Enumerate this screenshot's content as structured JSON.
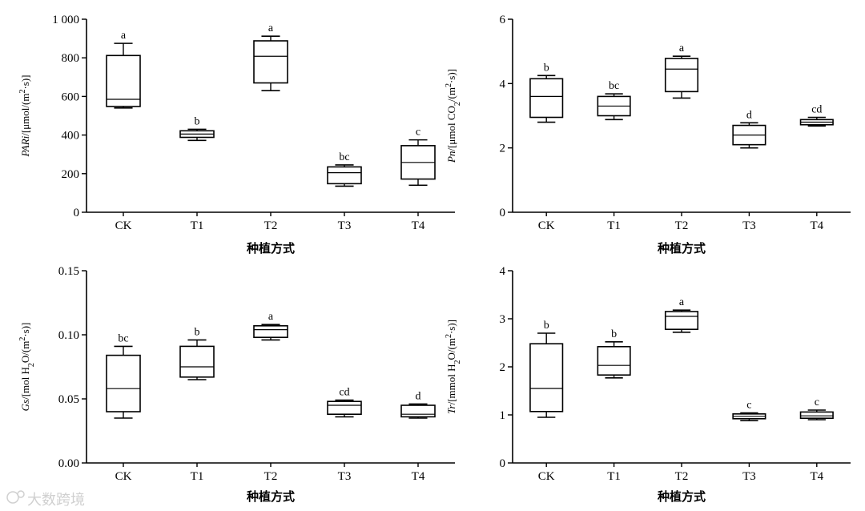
{
  "watermark": "大数跨境",
  "colors": {
    "ink": "#000000",
    "watermark": "#d0d0d0"
  },
  "chart_data": [
    {
      "type": "box",
      "panel": "top-left",
      "categories": [
        "CK",
        "T1",
        "T2",
        "T3",
        "T4"
      ],
      "xlabel": "种植方式",
      "ylabel_parts": [
        "PARi",
        "/[μmol/(m",
        "2",
        "·s)]"
      ],
      "ylim": [
        0,
        1000
      ],
      "yticks": [
        0,
        200,
        400,
        600,
        800,
        1000
      ],
      "ytick_labels": [
        "0",
        "200",
        "400",
        "600",
        "800",
        "1 000"
      ],
      "grid": false,
      "boxes": [
        {
          "min": 540,
          "q1": 548,
          "median": 585,
          "q3": 812,
          "max": 875,
          "letter": "a"
        },
        {
          "min": 372,
          "q1": 388,
          "median": 405,
          "q3": 422,
          "max": 430,
          "letter": "b"
        },
        {
          "min": 630,
          "q1": 670,
          "median": 808,
          "q3": 888,
          "max": 912,
          "letter": "a"
        },
        {
          "min": 135,
          "q1": 148,
          "median": 205,
          "q3": 235,
          "max": 245,
          "letter": "bc"
        },
        {
          "min": 140,
          "q1": 172,
          "median": 258,
          "q3": 345,
          "max": 375,
          "letter": "c"
        }
      ]
    },
    {
      "type": "box",
      "panel": "top-right",
      "categories": [
        "CK",
        "T1",
        "T2",
        "T3",
        "T4"
      ],
      "xlabel": "种植方式",
      "ylabel_parts": [
        "Pn",
        "/[μmol CO",
        "2",
        "/(m",
        "2",
        "·s)]"
      ],
      "ylim": [
        0,
        6
      ],
      "yticks": [
        0,
        2,
        4,
        6
      ],
      "ytick_labels": [
        "0",
        "2",
        "4",
        "6"
      ],
      "grid": false,
      "boxes": [
        {
          "min": 2.8,
          "q1": 2.95,
          "median": 3.6,
          "q3": 4.15,
          "max": 4.25,
          "letter": "b"
        },
        {
          "min": 2.88,
          "q1": 3.0,
          "median": 3.3,
          "q3": 3.6,
          "max": 3.68,
          "letter": "bc"
        },
        {
          "min": 3.55,
          "q1": 3.75,
          "median": 4.45,
          "q3": 4.78,
          "max": 4.85,
          "letter": "a"
        },
        {
          "min": 2.0,
          "q1": 2.1,
          "median": 2.4,
          "q3": 2.7,
          "max": 2.78,
          "letter": "d"
        },
        {
          "min": 2.68,
          "q1": 2.72,
          "median": 2.8,
          "q3": 2.88,
          "max": 2.95,
          "letter": "cd"
        }
      ]
    },
    {
      "type": "box",
      "panel": "bottom-left",
      "categories": [
        "CK",
        "T1",
        "T2",
        "T3",
        "T4"
      ],
      "xlabel": "种植方式",
      "ylabel_parts": [
        "Gs",
        "/[mol H",
        "2",
        "O/(m",
        "2",
        "·s)]"
      ],
      "ylim": [
        0,
        0.15
      ],
      "yticks": [
        0,
        0.05,
        0.1,
        0.15
      ],
      "ytick_labels": [
        "0.00",
        "0.05",
        "0.10",
        "0.15"
      ],
      "grid": false,
      "boxes": [
        {
          "min": 0.035,
          "q1": 0.04,
          "median": 0.058,
          "q3": 0.084,
          "max": 0.091,
          "letter": "bc"
        },
        {
          "min": 0.065,
          "q1": 0.067,
          "median": 0.075,
          "q3": 0.091,
          "max": 0.096,
          "letter": "b"
        },
        {
          "min": 0.096,
          "q1": 0.098,
          "median": 0.104,
          "q3": 0.107,
          "max": 0.108,
          "letter": "a"
        },
        {
          "min": 0.036,
          "q1": 0.038,
          "median": 0.045,
          "q3": 0.048,
          "max": 0.049,
          "letter": "cd"
        },
        {
          "min": 0.035,
          "q1": 0.036,
          "median": 0.038,
          "q3": 0.045,
          "max": 0.046,
          "letter": "d"
        }
      ]
    },
    {
      "type": "box",
      "panel": "bottom-right",
      "categories": [
        "CK",
        "T1",
        "T2",
        "T3",
        "T4"
      ],
      "xlabel": "种植方式",
      "ylabel_parts": [
        "Tr",
        "/[mmol H",
        "2",
        "O/(m",
        "2",
        "·s)]"
      ],
      "ylim": [
        0,
        4
      ],
      "yticks": [
        0,
        1,
        2,
        3,
        4
      ],
      "ytick_labels": [
        "0",
        "1",
        "2",
        "3",
        "4"
      ],
      "grid": false,
      "boxes": [
        {
          "min": 0.95,
          "q1": 1.07,
          "median": 1.55,
          "q3": 2.48,
          "max": 2.7,
          "letter": "b"
        },
        {
          "min": 1.77,
          "q1": 1.83,
          "median": 2.03,
          "q3": 2.42,
          "max": 2.52,
          "letter": "b"
        },
        {
          "min": 2.72,
          "q1": 2.78,
          "median": 3.05,
          "q3": 3.15,
          "max": 3.18,
          "letter": "a"
        },
        {
          "min": 0.88,
          "q1": 0.92,
          "median": 0.97,
          "q3": 1.02,
          "max": 1.04,
          "letter": "c"
        },
        {
          "min": 0.9,
          "q1": 0.93,
          "median": 0.98,
          "q3": 1.06,
          "max": 1.1,
          "letter": "c"
        }
      ]
    }
  ]
}
